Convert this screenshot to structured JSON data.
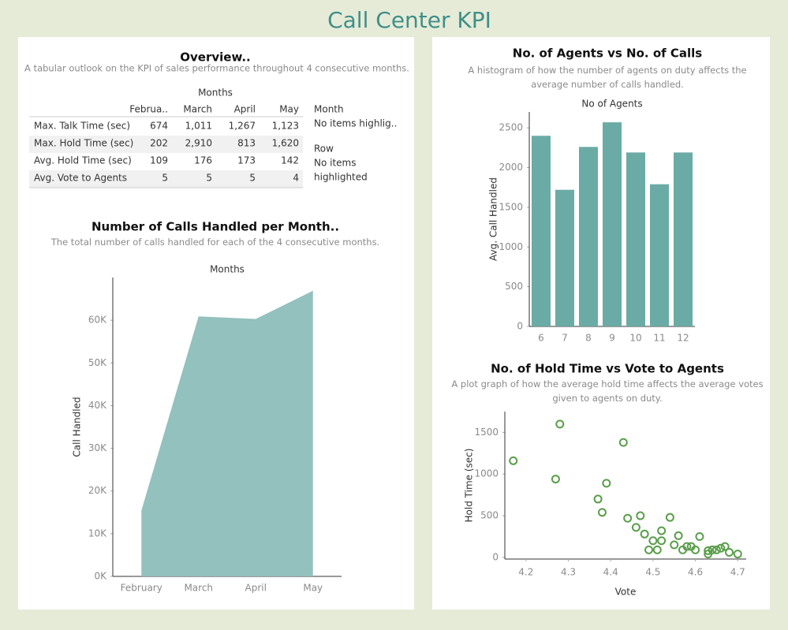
{
  "title": "Call Center KPI",
  "overview": {
    "title": "Overview..",
    "subtitle": "A tabular outlook on the KPI of sales performance throughout 4 consecutive months.",
    "group_header": "Months",
    "columns": [
      "Februa..",
      "March",
      "April",
      "May"
    ],
    "rows": [
      {
        "label": "Max. Talk Time (sec)",
        "values": [
          "674",
          "1,011",
          "1,267",
          "1,123"
        ]
      },
      {
        "label": "Max. Hold Time (sec)",
        "values": [
          "202",
          "2,910",
          "813",
          "1,620"
        ]
      },
      {
        "label": "Avg. Hold Time (sec)",
        "values": [
          "109",
          "176",
          "173",
          "142"
        ]
      },
      {
        "label": "Avg. Vote to Agents",
        "values": [
          "5",
          "5",
          "5",
          "4"
        ]
      }
    ],
    "side": [
      "Month",
      "No items highlig..",
      "Row",
      "No items",
      "highlighted"
    ]
  },
  "chart_data": [
    {
      "type": "area",
      "title": "Number of Calls Handled per Month..",
      "subtitle": "The total number of calls handled for each of the 4 consecutive months.",
      "x_label": "Months",
      "y_label": "Call Handled",
      "color": "#93c1bd",
      "categories": [
        "February",
        "March",
        "April",
        "May"
      ],
      "values": [
        15400,
        60900,
        60300,
        66900
      ],
      "ylim": [
        0,
        70000
      ],
      "yticks": [
        {
          "value": 0,
          "label": "0K"
        },
        {
          "value": 10000,
          "label": "10K"
        },
        {
          "value": 20000,
          "label": "20K"
        },
        {
          "value": 30000,
          "label": "30K"
        },
        {
          "value": 40000,
          "label": "40K"
        },
        {
          "value": 50000,
          "label": "50K"
        },
        {
          "value": 60000,
          "label": "60K"
        }
      ]
    },
    {
      "type": "bar",
      "title": "No. of Agents vs No. of Calls",
      "subtitle": "A histogram of how the number of agents on duty affects the average number of calls handled.",
      "x_label": "No of Agents",
      "y_label": "Avg. Call Handled",
      "color": "#6aaba5",
      "categories": [
        "6",
        "7",
        "8",
        "9",
        "10",
        "11",
        "12"
      ],
      "values": [
        2400,
        1720,
        2260,
        2570,
        2190,
        1790,
        2190
      ],
      "ylim": [
        0,
        2700
      ],
      "yticks": [
        0,
        500,
        1000,
        1500,
        2000,
        2500
      ]
    },
    {
      "type": "scatter",
      "title": "No. of Hold Time vs Vote to Agents",
      "subtitle": "A plot graph of how the average hold time affects the average votes given to agents on duty.",
      "x_label": "Vote",
      "y_label": "Hold Time (sec)",
      "color": "#5a9e4a",
      "x": [
        4.17,
        4.28,
        4.27,
        4.43,
        4.39,
        4.37,
        4.38,
        4.44,
        4.47,
        4.46,
        4.48,
        4.54,
        4.5,
        4.52,
        4.52,
        4.49,
        4.51,
        4.55,
        4.56,
        4.57,
        4.58,
        4.59,
        4.61,
        4.6,
        4.63,
        4.64,
        4.65,
        4.66,
        4.67,
        4.68,
        4.7,
        4.63
      ],
      "values": [
        1160,
        1600,
        940,
        1380,
        890,
        700,
        540,
        470,
        500,
        360,
        280,
        480,
        200,
        200,
        320,
        90,
        90,
        150,
        260,
        90,
        130,
        130,
        250,
        90,
        80,
        90,
        90,
        110,
        130,
        60,
        40,
        40
      ],
      "xlim": [
        4.15,
        4.72
      ],
      "xticks": [
        4.2,
        4.3,
        4.4,
        4.5,
        4.6,
        4.7
      ],
      "ylim": [
        -20,
        1750
      ],
      "yticks": [
        0,
        500,
        1000,
        1500
      ]
    }
  ]
}
